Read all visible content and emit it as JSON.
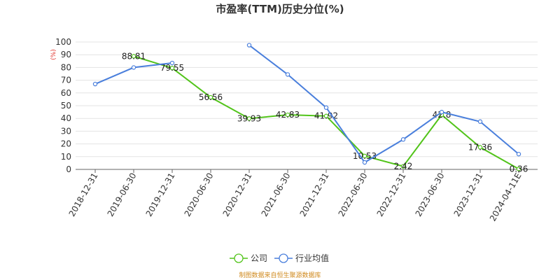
{
  "chart_data": {
    "type": "line",
    "title": "市盈率(TTM)历史分位(%)",
    "ylabel": "(%)",
    "ylim": [
      0,
      100
    ],
    "yticks": [
      0,
      10,
      20,
      30,
      40,
      50,
      60,
      70,
      80,
      90,
      100
    ],
    "grid": true,
    "legend_position": "bottom-center",
    "categories": [
      "2018-12-31",
      "2019-06-30",
      "2019-12-31",
      "2020-06-30",
      "2020-12-31",
      "2021-06-30",
      "2021-12-31",
      "2022-06-30",
      "2022-12-31",
      "2023-06-30",
      "2023-12-31",
      "2024-04-11E"
    ],
    "series": [
      {
        "name": "公司",
        "color": "#52c41a",
        "values": [
          null,
          88.81,
          79.55,
          56.56,
          39.93,
          42.83,
          41.92,
          10.53,
          2.42,
          42.8,
          17.36,
          0.36
        ],
        "labels": [
          "",
          "88.81",
          "79.55",
          "56.56",
          "39.93",
          "42.83",
          "41.92",
          "10.53",
          "2.42",
          "42.8",
          "17.36",
          "0.36"
        ]
      },
      {
        "name": "行业均值",
        "color": "#4a7fdc",
        "values": [
          67,
          80,
          83.5,
          null,
          97.5,
          74.5,
          48.5,
          5.5,
          23.5,
          45,
          37.5,
          12
        ]
      }
    ],
    "source": "制图数据来自恒生聚源数据库"
  }
}
